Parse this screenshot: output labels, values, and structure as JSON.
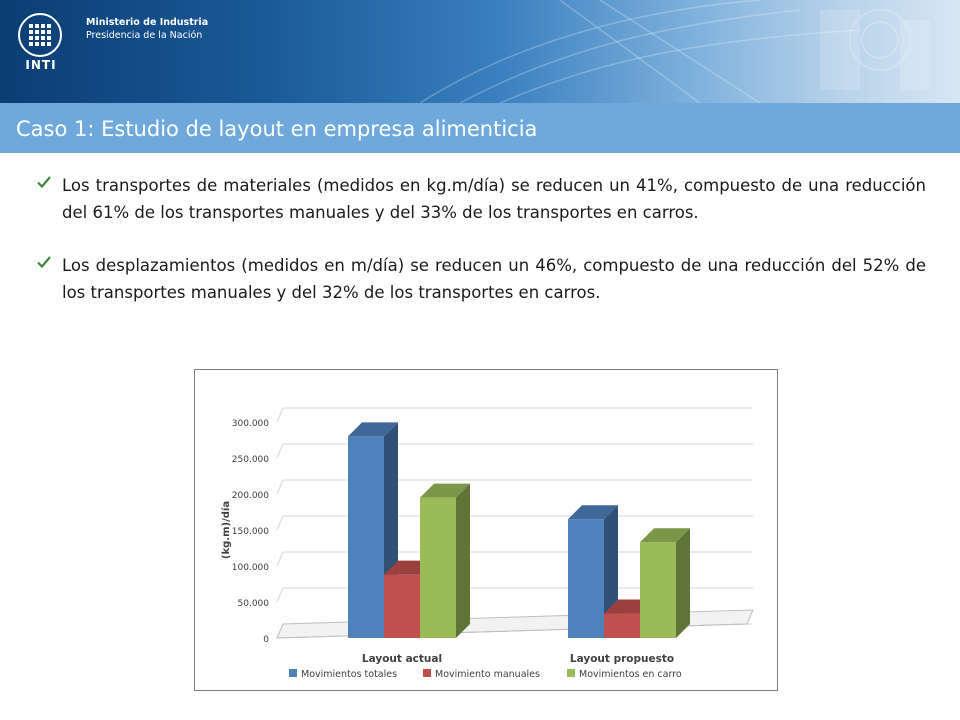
{
  "header": {
    "ministry_line1": "Ministerio de Industria",
    "ministry_line2": "Presidencia de la Nación",
    "logo_text": "INTI"
  },
  "slide": {
    "title": "Caso 1: Estudio de layout en empresa alimenticia",
    "bullets": [
      "Los transportes de materiales (medidos en kg.m/día) se reducen un 41%, compuesto de una reducción del 61% de los transportes manuales y del 33% de los transportes en carros.",
      "Los desplazamientos (medidos en m/día) se reducen un 46%, compuesto de una reducción del 52% de los transportes manuales y del 32% de los transportes en carros."
    ]
  },
  "colors": {
    "title_bar": "#6fa9dc",
    "series_totales": "#4f81bd",
    "series_manuales": "#c0504d",
    "series_carro": "#9bbb59",
    "check": "#3a8a3a"
  },
  "chart_data": {
    "type": "bar",
    "three_d": true,
    "categories": [
      "Layout actual",
      "Layout propuesto"
    ],
    "series": [
      {
        "name": "Movimientos totales",
        "values": [
          280000,
          165000
        ],
        "color": "#4f81bd"
      },
      {
        "name": "Movimiento manuales",
        "values": [
          88000,
          34000
        ],
        "color": "#c0504d"
      },
      {
        "name": "Movimientos en carro",
        "values": [
          195000,
          133000
        ],
        "color": "#9bbb59"
      }
    ],
    "ylabel": "(kg.m)/día",
    "ylim": [
      0,
      300000
    ],
    "yticks": [
      0,
      50000,
      100000,
      150000,
      200000,
      250000,
      300000
    ],
    "ytick_labels": [
      "0",
      "50.000",
      "100.000",
      "150.000",
      "200.000",
      "250.000",
      "300.000"
    ],
    "grid": true,
    "legend": "bottom"
  }
}
